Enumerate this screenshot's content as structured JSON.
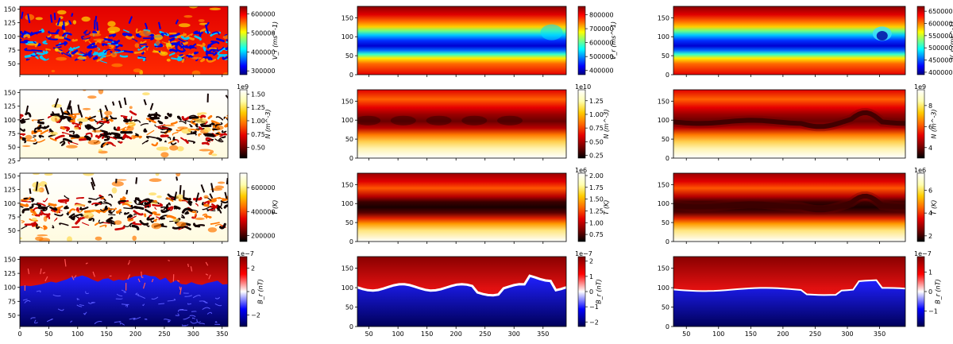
{
  "colors": {
    "hot": [
      "#000000",
      "#7a0000",
      "#e60000",
      "#ff6a00",
      "#ffcc00",
      "#ffffb0",
      "#ffffff"
    ],
    "jet": [
      "#00007f",
      "#0000ff",
      "#007fff",
      "#00ffff",
      "#7fff7f",
      "#ffff00",
      "#ff7f00",
      "#ff0000",
      "#7f0000"
    ],
    "seismic": [
      "#00004c",
      "#0000ff",
      "#ffffff",
      "#ff0000",
      "#7f0000"
    ]
  },
  "chart_data": [
    {
      "type": "heatmap",
      "panel": "r1c1",
      "field": "Vr",
      "cmap": "jet",
      "style": "chaotic",
      "ylim": [
        30,
        155
      ],
      "xlim": [
        0,
        360
      ],
      "yticks": [
        "50",
        "75",
        "100",
        "125",
        "150"
      ],
      "xticks": [],
      "cb_label": "V_r (ms^-1)",
      "cb_ticks": [
        "300000",
        "400000",
        "500000",
        "600000"
      ],
      "cb_range": [
        280000,
        640000
      ],
      "cb_exp": ""
    },
    {
      "type": "heatmap",
      "panel": "r1c2",
      "field": "Vr",
      "cmap": "jet",
      "style": "band",
      "ylim": [
        0,
        180
      ],
      "xlim": [
        30,
        390
      ],
      "yticks": [
        "0",
        "50",
        "100",
        "150"
      ],
      "xticks": [],
      "cb_label": "V_r (ms^-1)",
      "cb_ticks": [
        "400000",
        "500000",
        "600000",
        "700000",
        "800000"
      ],
      "cb_range": [
        370000,
        860000
      ],
      "cb_exp": ""
    },
    {
      "type": "heatmap",
      "panel": "r1c3",
      "field": "Vr",
      "cmap": "jet",
      "style": "wavy",
      "ylim": [
        0,
        180
      ],
      "xlim": [
        30,
        390
      ],
      "yticks": [
        "0",
        "50",
        "100",
        "150"
      ],
      "xticks": [],
      "cb_label": "V_r (ms^-1)",
      "cb_ticks": [
        "400000",
        "450000",
        "500000",
        "550000",
        "600000",
        "650000"
      ],
      "cb_range": [
        390000,
        670000
      ],
      "cb_exp": ""
    },
    {
      "type": "heatmap",
      "panel": "r2c1",
      "field": "N",
      "cmap": "hot",
      "style": "chaotic",
      "ylim": [
        30,
        155
      ],
      "xlim": [
        0,
        360
      ],
      "yticks": [
        "25",
        "50",
        "75",
        "100",
        "125",
        "150"
      ],
      "xticks": [],
      "cb_label": "N (m^-3)",
      "cb_ticks": [
        "0.50",
        "0.75",
        "1.00",
        "1.25",
        "1.50"
      ],
      "cb_range": [
        0.3,
        1.58
      ],
      "cb_exp": "1e9"
    },
    {
      "type": "heatmap",
      "panel": "r2c2",
      "field": "N",
      "cmap": "hot",
      "style": "band",
      "ylim": [
        0,
        180
      ],
      "xlim": [
        30,
        390
      ],
      "yticks": [
        "0",
        "50",
        "100",
        "150"
      ],
      "xticks": [],
      "cb_label": "N (m^-3)",
      "cb_ticks": [
        "0.25",
        "0.50",
        "0.75",
        "1.00",
        "1.25"
      ],
      "cb_range": [
        0.2,
        1.45
      ],
      "cb_exp": "1e10"
    },
    {
      "type": "heatmap",
      "panel": "r2c3",
      "field": "N",
      "cmap": "hot",
      "style": "wavy",
      "ylim": [
        0,
        180
      ],
      "xlim": [
        30,
        390
      ],
      "yticks": [
        "0",
        "50",
        "100",
        "150"
      ],
      "xticks": [],
      "cb_label": "N (m^-3)",
      "cb_ticks": [
        "4",
        "6",
        "8"
      ],
      "cb_range": [
        3,
        9.5
      ],
      "cb_exp": "1e9"
    },
    {
      "type": "heatmap",
      "panel": "r3c1",
      "field": "T",
      "cmap": "hot",
      "style": "chaotic",
      "ylim": [
        30,
        155
      ],
      "xlim": [
        0,
        360
      ],
      "yticks": [
        "50",
        "75",
        "100",
        "125",
        "150"
      ],
      "xticks": [],
      "cb_label": "T (K)",
      "cb_ticks": [
        "200000",
        "400000",
        "600000"
      ],
      "cb_range": [
        150000,
        720000
      ],
      "cb_exp": ""
    },
    {
      "type": "heatmap",
      "panel": "r3c2",
      "field": "T",
      "cmap": "hot",
      "style": "band",
      "ylim": [
        0,
        180
      ],
      "xlim": [
        30,
        390
      ],
      "yticks": [
        "0",
        "50",
        "100",
        "150"
      ],
      "xticks": [],
      "cb_label": "T (K)",
      "cb_ticks": [
        "0.75",
        "1.00",
        "1.25",
        "1.50",
        "1.75",
        "2.00"
      ],
      "cb_range": [
        0.6,
        2.05
      ],
      "cb_exp": "1e6"
    },
    {
      "type": "heatmap",
      "panel": "r3c3",
      "field": "T",
      "cmap": "hot",
      "style": "wavy",
      "ylim": [
        0,
        180
      ],
      "xlim": [
        30,
        390
      ],
      "yticks": [
        "0",
        "50",
        "100",
        "150"
      ],
      "xticks": [],
      "cb_label": "T (K)",
      "cb_ticks": [
        "2",
        "4",
        "6"
      ],
      "cb_range": [
        1.5,
        7.5
      ],
      "cb_exp": "1e6"
    },
    {
      "type": "heatmap",
      "panel": "r4c1",
      "field": "Br",
      "cmap": "seismic",
      "style": "chaotic",
      "ylim": [
        30,
        155
      ],
      "xlim": [
        0,
        360
      ],
      "yticks": [
        "50",
        "75",
        "100",
        "125",
        "150"
      ],
      "xticks": [
        "0",
        "50",
        "100",
        "150",
        "200",
        "250",
        "300",
        "350"
      ],
      "cb_label": "B_r (nT)",
      "cb_ticks": [
        "2",
        "0",
        "−2"
      ],
      "cb_range": [
        -3,
        3
      ],
      "cb_exp": "1e−7"
    },
    {
      "type": "heatmap",
      "panel": "r4c2",
      "field": "Br",
      "cmap": "seismic",
      "style": "band",
      "ylim": [
        0,
        180
      ],
      "xlim": [
        30,
        390
      ],
      "yticks": [
        "0",
        "50",
        "100",
        "150"
      ],
      "xticks": [
        "50",
        "100",
        "150",
        "200",
        "250",
        "300",
        "350"
      ],
      "cb_label": "B_r (nT)",
      "cb_ticks": [
        "2",
        "1",
        "0",
        "−1",
        "−2"
      ],
      "cb_range": [
        -2.3,
        2.3
      ],
      "cb_exp": "1e−7"
    },
    {
      "type": "heatmap",
      "panel": "r4c3",
      "field": "Br",
      "cmap": "seismic",
      "style": "wavy",
      "ylim": [
        0,
        180
      ],
      "xlim": [
        30,
        390
      ],
      "yticks": [
        "0",
        "50",
        "100",
        "150"
      ],
      "xticks": [
        "50",
        "100",
        "150",
        "200",
        "250",
        "300",
        "350"
      ],
      "cb_label": "B_r (nT)",
      "cb_ticks": [
        "1",
        "0",
        "−1"
      ],
      "cb_range": [
        -1.8,
        1.8
      ],
      "cb_exp": "1e−7"
    }
  ]
}
